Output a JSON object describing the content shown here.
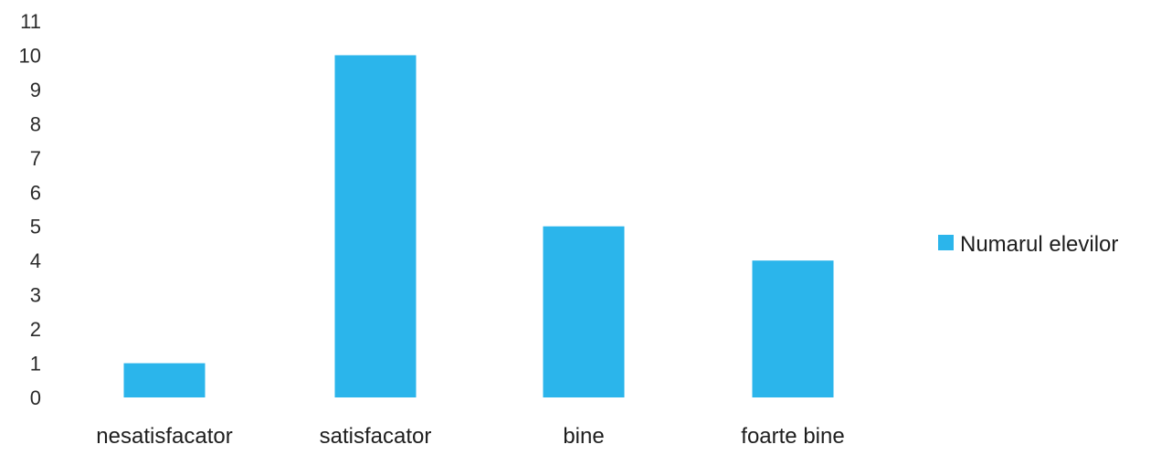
{
  "chart_data": {
    "type": "bar",
    "categories": [
      "nesatisfacator",
      "satisfacator",
      "bine",
      "foarte bine"
    ],
    "series": [
      {
        "name": "Numarul elevilor",
        "values": [
          1,
          10,
          5,
          4
        ]
      }
    ],
    "ylim": [
      0,
      11
    ],
    "yticks": [
      0,
      1,
      2,
      3,
      4,
      5,
      6,
      7,
      8,
      9,
      10,
      11
    ],
    "grid": false,
    "legend": "right",
    "title": "",
    "xlabel": "",
    "ylabel": "",
    "colors": {
      "bar": "#2bb5eb"
    }
  }
}
